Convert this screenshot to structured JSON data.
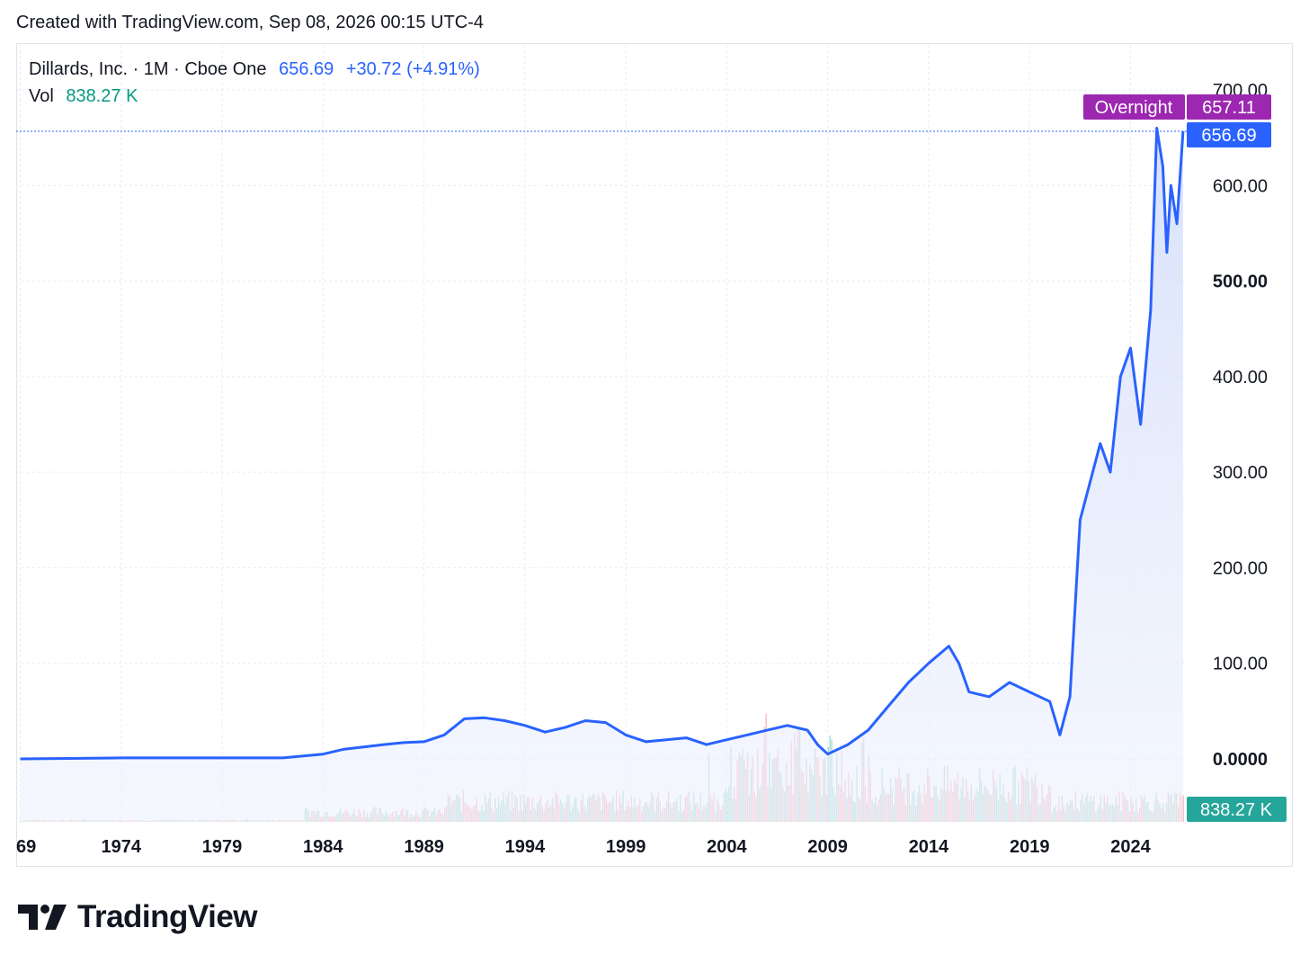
{
  "header": {
    "caption": "Created with TradingView.com, Sep 08, 2026 00:15 UTC-4"
  },
  "legend": {
    "symbol": "Dillards, Inc. · 1M · Cboe One",
    "price": "656.69",
    "change": "+30.72 (+4.91%)",
    "vol_label": "Vol",
    "vol_value": "838.27 K"
  },
  "tags": {
    "overnight_label": "Overnight",
    "overnight_price": "657.11",
    "last_price": "656.69",
    "volume": "838.27 K"
  },
  "footer": {
    "brand": "TradingView"
  },
  "colors": {
    "line": "#2962ff",
    "area_top": "#dbe4fb",
    "volume_up": "#089981",
    "volume_down": "#f23645",
    "overnight": "#9c27b0",
    "grid": "#e9ecf2"
  },
  "chart_data": {
    "type": "area",
    "yticks": [
      "700.00",
      "600.00",
      "500.00",
      "400.00",
      "300.00",
      "200.00",
      "100.00",
      "0.0000"
    ],
    "ylim": [
      0,
      700
    ],
    "xticks": [
      "69",
      "1974",
      "1979",
      "1984",
      "1989",
      "1994",
      "1999",
      "2004",
      "2009",
      "2014",
      "2019",
      "2024"
    ],
    "series": [
      {
        "x": [
          1969,
          1974,
          1979,
          1982,
          1984,
          1985,
          1987,
          1988,
          1989,
          1990,
          1991,
          1992,
          1993,
          1994,
          1995,
          1996,
          1997,
          1998,
          1999,
          2000,
          2001,
          2002,
          2003,
          2004,
          2005,
          2006,
          2007,
          2008,
          2008.5,
          2009,
          2010,
          2011,
          2012,
          2013,
          2014,
          2015,
          2015.5,
          2016,
          2017,
          2018,
          2019,
          2020,
          2020.5,
          2021,
          2021.5,
          2022,
          2022.5,
          2023,
          2023.5,
          2024,
          2024.5,
          2025,
          2025.3,
          2025.6,
          2025.8,
          2026,
          2026.3,
          2026.6
        ],
        "y": [
          0,
          1,
          1,
          1,
          5,
          10,
          15,
          17,
          18,
          25,
          42,
          43,
          40,
          35,
          28,
          33,
          40,
          38,
          25,
          18,
          20,
          22,
          15,
          20,
          25,
          30,
          35,
          30,
          15,
          5,
          15,
          30,
          55,
          80,
          100,
          118,
          100,
          70,
          65,
          80,
          70,
          60,
          25,
          65,
          250,
          290,
          330,
          300,
          400,
          430,
          350,
          470,
          660,
          620,
          530,
          600,
          560,
          656.69
        ]
      }
    ]
  }
}
